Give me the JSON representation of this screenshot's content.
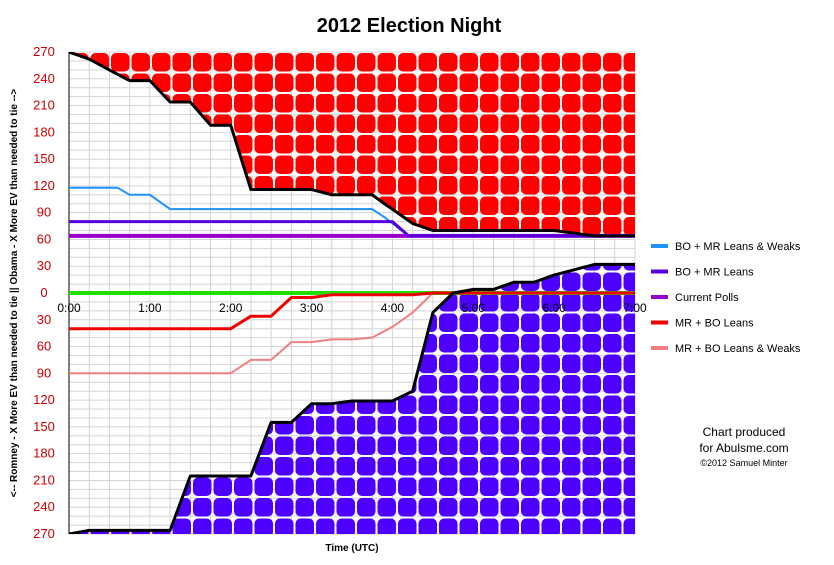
{
  "chart_data": {
    "type": "line",
    "title": "2012 Election Night",
    "xlabel": "Time (UTC)",
    "ylabel": "<-- Romney - X More EV than needed to tie || Obama - X More EV than needed to tie -->",
    "x_ticks": [
      "0:00",
      "1:00",
      "2:00",
      "3:00",
      "4:00",
      "5:00",
      "6:00",
      "7:00"
    ],
    "y_ticks": [
      "270",
      "240",
      "210",
      "180",
      "150",
      "120",
      "90",
      "60",
      "30",
      "0",
      "30",
      "60",
      "90",
      "120",
      "150",
      "180",
      "210",
      "240",
      "270"
    ],
    "ylim": [
      -270,
      270
    ],
    "xlim": [
      0,
      7
    ],
    "grid": true,
    "legend_position": "right",
    "series": [
      {
        "name": "BO + MR Leans & Weaks",
        "color": "#1e90ff",
        "x": [
          0,
          0.6,
          0.75,
          1.0,
          1.25,
          3.75,
          3.9,
          4.2,
          7
        ],
        "y": [
          118,
          118,
          110,
          110,
          94,
          94,
          85,
          64,
          64
        ]
      },
      {
        "name": "BO + MR Leans",
        "color": "#5500dd",
        "x": [
          0,
          4.0,
          4.2,
          7
        ],
        "y": [
          80,
          80,
          64,
          64
        ]
      },
      {
        "name": "Current Polls",
        "color": "#9900cc",
        "x": [
          0,
          7
        ],
        "y": [
          64,
          64
        ]
      },
      {
        "name": "MR + BO Leans",
        "color": "#ee0000",
        "x": [
          0,
          2.0,
          2.25,
          2.5,
          2.75,
          3.0,
          3.25,
          3.5,
          4.0,
          4.25,
          4.5,
          7
        ],
        "y": [
          -40,
          -40,
          -26,
          -26,
          -5,
          -5,
          -2,
          -2,
          -2,
          -2,
          0,
          0
        ]
      },
      {
        "name": "MR + BO Leans & Weaks",
        "color": "#f08080",
        "x": [
          0,
          2.0,
          2.25,
          2.5,
          2.75,
          3.0,
          3.25,
          3.5,
          3.75,
          4.0,
          4.25,
          4.5,
          7
        ],
        "y": [
          -90,
          -90,
          -75,
          -75,
          -55,
          -55,
          -52,
          -52,
          -50,
          -38,
          -22,
          0,
          0
        ]
      },
      {
        "name": "Zero line",
        "color": "#22dd00",
        "x": [
          0,
          7
        ],
        "y": [
          0,
          0
        ]
      },
      {
        "name": "Obama margin",
        "color": "#000000",
        "x": [
          0,
          0.25,
          0.5,
          0.75,
          1.0,
          1.25,
          1.5,
          1.75,
          2.0,
          2.25,
          2.5,
          2.75,
          3.0,
          3.25,
          3.5,
          3.75,
          3.9,
          4.0,
          4.25,
          4.5,
          5.0,
          5.5,
          6.0,
          6.5,
          7.0
        ],
        "y": [
          270,
          262,
          250,
          238,
          238,
          214,
          214,
          188,
          188,
          116,
          116,
          116,
          116,
          110,
          110,
          110,
          100,
          94,
          78,
          70,
          70,
          70,
          70,
          64,
          64
        ]
      },
      {
        "name": "Romney margin",
        "color": "#000000",
        "x": [
          0,
          0.25,
          0.5,
          1.0,
          1.25,
          1.5,
          1.75,
          2.0,
          2.25,
          2.5,
          2.75,
          3.0,
          3.25,
          3.5,
          3.75,
          4.0,
          4.25,
          4.5,
          4.75,
          5.0,
          5.25,
          5.5,
          5.75,
          6.0,
          6.5,
          7.0
        ],
        "y": [
          -270,
          -266,
          -266,
          -266,
          -266,
          -205,
          -205,
          -205,
          -205,
          -145,
          -145,
          -124,
          -124,
          -121,
          -121,
          -121,
          -110,
          -22,
          0,
          4,
          4,
          12,
          12,
          20,
          32,
          32
        ]
      }
    ]
  },
  "legend": {
    "items": [
      {
        "label": "BO + MR Leans & Weaks",
        "color": "#1e90ff"
      },
      {
        "label": "BO + MR Leans",
        "color": "#5500dd"
      },
      {
        "label": "Current Polls",
        "color": "#9900cc"
      },
      {
        "label": "MR + BO Leans",
        "color": "#ee0000"
      },
      {
        "label": "MR + BO Leans & Weaks",
        "color": "#f08080"
      }
    ]
  },
  "credit": {
    "line1": "Chart produced",
    "line2": "for Abulsme.com",
    "line3": "©2012 Samuel Minter"
  }
}
